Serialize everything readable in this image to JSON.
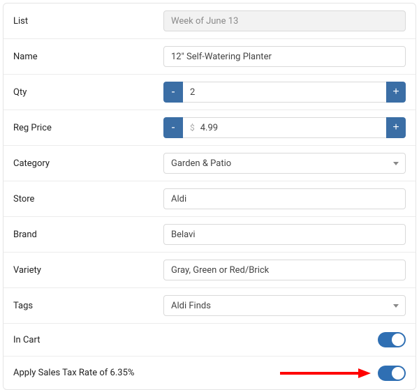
{
  "labels": {
    "list": "List",
    "name": "Name",
    "qty": "Qty",
    "reg_price": "Reg Price",
    "category": "Category",
    "store": "Store",
    "brand": "Brand",
    "variety": "Variety",
    "tags": "Tags",
    "in_cart": "In Cart",
    "apply_tax": "Apply Sales Tax Rate of 6.35%"
  },
  "values": {
    "list": "Week of June 13",
    "name": "12\" Self-Watering Planter",
    "qty": "2",
    "reg_price": "4.99",
    "currency_symbol": "$",
    "category": "Garden & Patio",
    "store": "Aldi",
    "brand": "Belavi",
    "variety": "Gray, Green or Red/Brick",
    "tags": "Aldi Finds"
  },
  "toggles": {
    "in_cart": true,
    "apply_tax": true
  },
  "colors": {
    "button_bg": "#3b6ea5",
    "toggle_bg": "#2f6fb3",
    "arrow": "#ff0000",
    "border": "#d9d9d9",
    "row_border": "#ececec",
    "readonly_bg": "#f2f2f2",
    "readonly_text": "#8a8a8a"
  }
}
